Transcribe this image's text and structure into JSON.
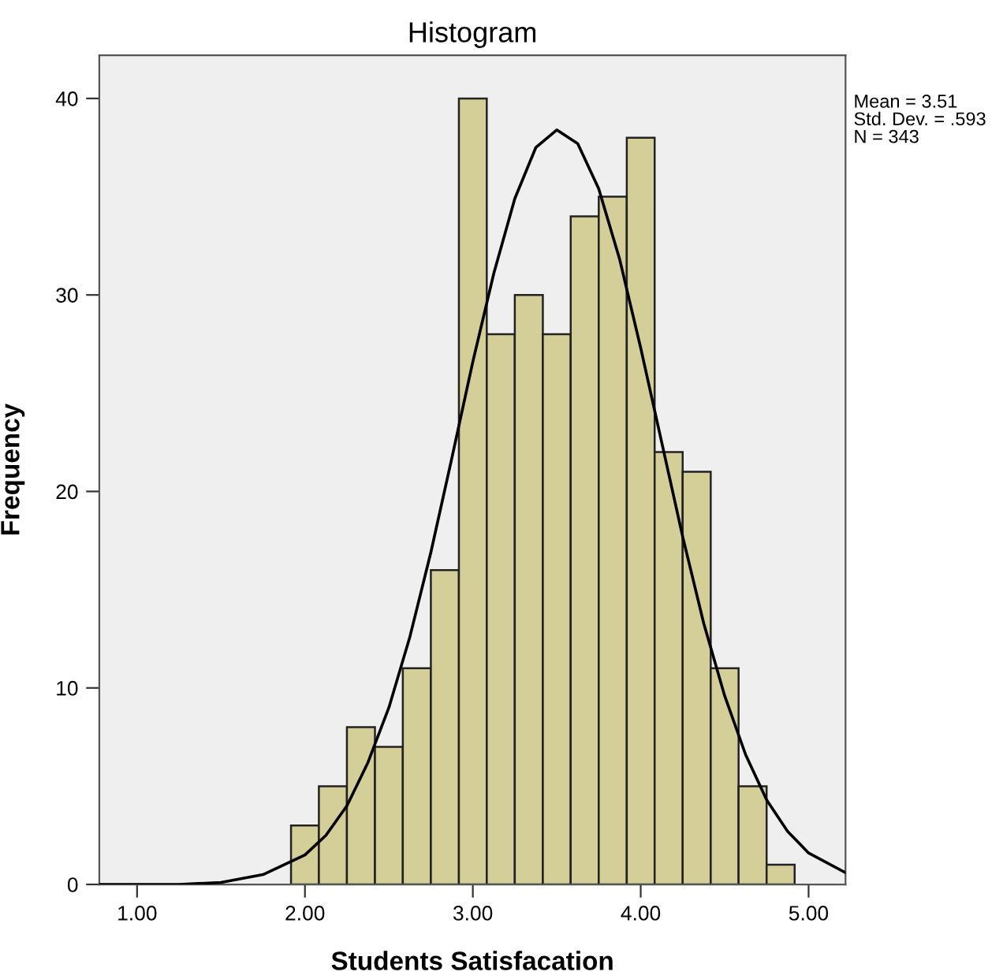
{
  "chart_data": {
    "type": "histogram",
    "title": "Histogram",
    "xlabel": "Students Satisfacation",
    "ylabel": "Frequency",
    "color": "#d4cf98",
    "bins": [
      1.917,
      2.083,
      2.25,
      2.417,
      2.583,
      2.75,
      2.917,
      3.083,
      3.25,
      3.417,
      3.583,
      3.75,
      3.917,
      4.083,
      4.25,
      4.417,
      4.583,
      4.75,
      4.917
    ],
    "values": [
      3,
      5,
      8,
      7,
      11,
      16,
      40,
      28,
      30,
      28,
      34,
      35,
      38,
      22,
      21,
      11,
      5,
      1
    ],
    "series": [
      {
        "type": "line",
        "color": "#000000",
        "x": [
          0.775,
          1.25,
          1.5,
          1.75,
          2.0,
          2.125,
          2.25,
          2.375,
          2.5,
          2.625,
          2.75,
          2.875,
          3.0,
          3.125,
          3.25,
          3.375,
          3.5,
          3.625,
          3.75,
          3.875,
          4.0,
          4.125,
          4.25,
          4.375,
          4.5,
          4.625,
          4.75,
          4.875,
          5.0,
          5.22
        ],
        "values": [
          0,
          0,
          0.1,
          0.5,
          1.5,
          2.5,
          4.0,
          6.2,
          9.0,
          12.6,
          16.9,
          21.7,
          26.6,
          31.1,
          34.9,
          37.5,
          38.4,
          37.7,
          35.4,
          31.8,
          27.3,
          22.5,
          17.7,
          13.3,
          9.6,
          6.6,
          4.3,
          2.7,
          1.6,
          0.6
        ]
      }
    ],
    "xlim": [
      0.775,
      5.22
    ],
    "ylim": [
      0,
      42.2
    ],
    "xticks": [
      {
        "value": 1,
        "label": "1.00"
      },
      {
        "value": 2,
        "label": "2.00"
      },
      {
        "value": 3,
        "label": "3.00"
      },
      {
        "value": 4,
        "label": "4.00"
      },
      {
        "value": 5,
        "label": "5.00"
      }
    ],
    "yticks": [
      0,
      10,
      20,
      30,
      40
    ],
    "grid": false,
    "legend": false,
    "annotations": [
      "Mean = 3.51",
      "Std. Dev. = .593",
      "N = 343"
    ]
  }
}
